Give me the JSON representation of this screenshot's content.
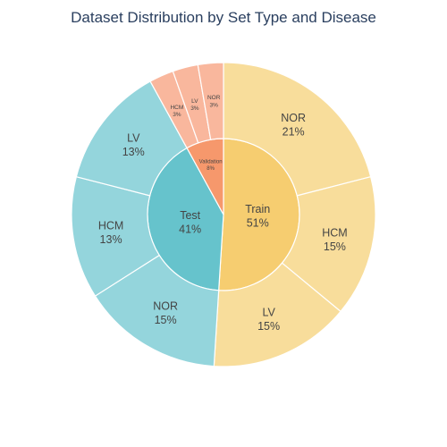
{
  "chart_data": {
    "type": "sunburst",
    "title": "Dataset Distribution by Set Type and Disease",
    "colors": {
      "Train": "#f6cd70",
      "Train_child": "#f8dd9b",
      "Test": "#66c3cc",
      "Test_child": "#94d5dc",
      "Validation": "#f6986c",
      "Validation_child": "#f9b79d"
    },
    "groups": [
      {
        "name": "Train",
        "percent": "51%",
        "value": 51,
        "children": [
          {
            "name": "NOR",
            "percent": "21%",
            "value": 21
          },
          {
            "name": "HCM",
            "percent": "15%",
            "value": 15
          },
          {
            "name": "LV",
            "percent": "15%",
            "value": 15
          }
        ]
      },
      {
        "name": "Test",
        "percent": "41%",
        "value": 41,
        "children": [
          {
            "name": "NOR",
            "percent": "15%",
            "value": 15
          },
          {
            "name": "HCM",
            "percent": "13%",
            "value": 13
          },
          {
            "name": "LV",
            "percent": "13%",
            "value": 13
          }
        ]
      },
      {
        "name": "Validation",
        "percent": "8%",
        "value": 8,
        "children": [
          {
            "name": "HCM",
            "percent": "3%",
            "value": 2.6
          },
          {
            "name": "LV",
            "percent": "3%",
            "value": 2.7
          },
          {
            "name": "NOR",
            "percent": "3%",
            "value": 2.7
          }
        ]
      }
    ]
  }
}
